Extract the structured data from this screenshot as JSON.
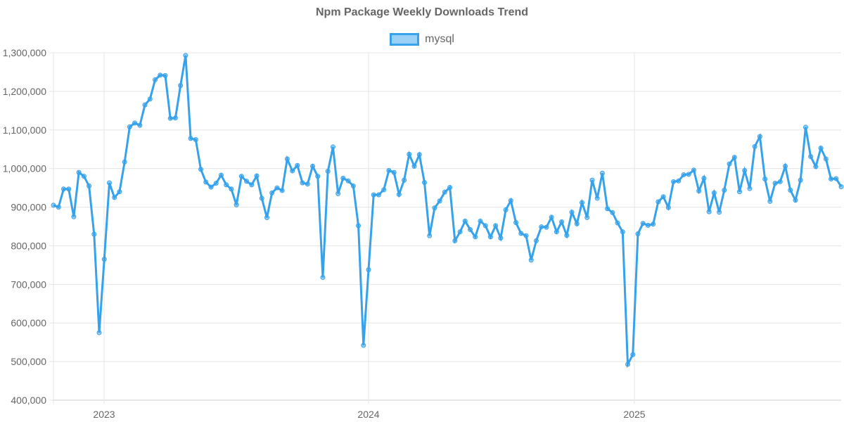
{
  "chart_data": {
    "type": "line",
    "title": "Npm Package Weekly Downloads Trend",
    "xlabel": "",
    "ylabel": "",
    "legend": {
      "position": "top",
      "entries": [
        "mysql"
      ]
    },
    "ylim": [
      400000,
      1300000
    ],
    "yticks": [
      "400,000",
      "500,000",
      "600,000",
      "700,000",
      "800,000",
      "900,000",
      "1,000,000",
      "1,100,000",
      "1,200,000",
      "1,300,000"
    ],
    "xticks": [
      "2023",
      "2024",
      "2025"
    ],
    "grid": true,
    "series": [
      {
        "name": "mysql",
        "color": "#36a2eb",
        "values": [
          905000,
          900000,
          947000,
          947000,
          875000,
          990000,
          980000,
          955000,
          830000,
          575000,
          765000,
          963000,
          925000,
          940000,
          1017000,
          1108000,
          1118000,
          1112000,
          1165000,
          1180000,
          1230000,
          1242000,
          1241000,
          1130000,
          1131000,
          1215000,
          1293000,
          1078000,
          1075000,
          998000,
          965000,
          952000,
          962000,
          983000,
          958000,
          947000,
          906000,
          980000,
          967000,
          958000,
          981000,
          923000,
          873000,
          937000,
          950000,
          943000,
          1025000,
          994000,
          1008000,
          963000,
          960000,
          1006000,
          980000,
          718000,
          993000,
          1056000,
          935000,
          975000,
          968000,
          955000,
          852000,
          542000,
          738000,
          932000,
          932000,
          945000,
          995000,
          990000,
          933000,
          970000,
          1037000,
          1006000,
          1036000,
          964000,
          826000,
          898000,
          916000,
          939000,
          951000,
          813000,
          836000,
          864000,
          842000,
          823000,
          864000,
          852000,
          823000,
          852000,
          820000,
          893000,
          917000,
          860000,
          832000,
          826000,
          763000,
          813000,
          849000,
          848000,
          874000,
          836000,
          862000,
          827000,
          887000,
          857000,
          912000,
          873000,
          970000,
          923000,
          988000,
          896000,
          886000,
          859000,
          836000,
          493000,
          518000,
          831000,
          858000,
          853000,
          856000,
          914000,
          927000,
          899000,
          966000,
          968000,
          984000,
          985000,
          996000,
          942000,
          975000,
          888000,
          937000,
          887000,
          944000,
          1012000,
          1029000,
          940000,
          995000,
          948000,
          1057000,
          1083000,
          973000,
          915000,
          962000,
          966000,
          1006000,
          944000,
          918000,
          970000,
          1107000,
          1031000,
          1005000,
          1053000,
          1025000,
          973000,
          974000,
          953000
        ]
      }
    ]
  }
}
